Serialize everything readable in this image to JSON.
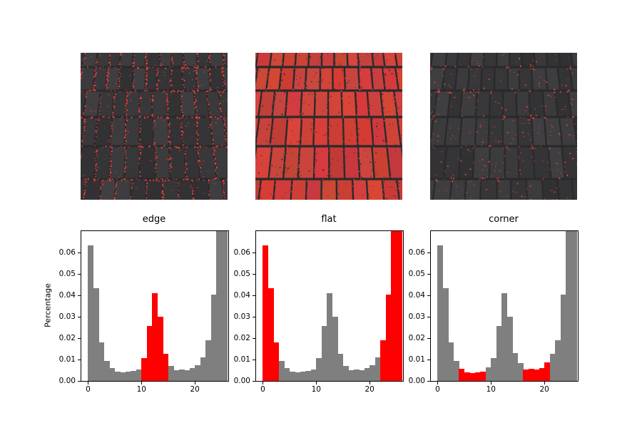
{
  "figure": {
    "background": "#ffffff",
    "description": "Three pavement photographs with red pixel overlays above three histograms"
  },
  "colors": {
    "bar_gray": "#7f7f7f",
    "bar_red": "#ff0000",
    "spine": "#000000",
    "text": "#000000",
    "brick": "#3c3c3c",
    "mortar": "#2a2a2c",
    "red_dot": "#e8403a",
    "flat_red": "#c7423c"
  },
  "images": [
    {
      "alt": "paving bricks with edge pixels highlighted in red",
      "overlay": "edge"
    },
    {
      "alt": "paving bricks with flat regions highlighted in red",
      "overlay": "flat"
    },
    {
      "alt": "paving bricks with corner pixels highlighted in red",
      "overlay": "corner"
    }
  ],
  "chart_data": {
    "type": "bar",
    "subtype": "histogram",
    "ylabel": "Percentage",
    "bin_start": 0,
    "bin_width": 1,
    "xlim": [
      -1.25,
      26.25
    ],
    "ylim": [
      0,
      0.07
    ],
    "xticks": [
      0,
      10,
      20
    ],
    "xtick_labels": [
      "0",
      "10",
      "20"
    ],
    "yticks": [
      0,
      0.01,
      0.02,
      0.03,
      0.04,
      0.05,
      0.06
    ],
    "ytick_labels": [
      "0.00",
      "0.01",
      "0.02",
      "0.03",
      "0.04",
      "0.05",
      "0.06"
    ],
    "grid": false,
    "legend": "none",
    "note": "26 bins of width 1 from 0 to 26; the last two bins exceed the y-axis range and are clipped at the top of each plot",
    "panels": [
      {
        "title": "edge",
        "red_bins": [
          [
            10,
            15
          ]
        ],
        "values": [
          0.0635,
          0.0435,
          0.0181,
          0.0095,
          0.006,
          0.0044,
          0.004,
          0.0043,
          0.0047,
          0.0055,
          0.0107,
          0.0256,
          0.041,
          0.03,
          0.0126,
          0.0069,
          0.0051,
          0.0054,
          0.0051,
          0.0059,
          0.0074,
          0.011,
          0.019,
          0.0403,
          0.075,
          0.075
        ]
      },
      {
        "title": "flat",
        "red_bins": [
          [
            0,
            3
          ],
          [
            22,
            26
          ]
        ],
        "values": [
          0.0635,
          0.0435,
          0.0181,
          0.0095,
          0.006,
          0.0044,
          0.004,
          0.0043,
          0.0047,
          0.0055,
          0.0107,
          0.0256,
          0.041,
          0.03,
          0.0126,
          0.0069,
          0.0051,
          0.0054,
          0.0051,
          0.0059,
          0.0074,
          0.011,
          0.019,
          0.0403,
          0.075,
          0.075
        ]
      },
      {
        "title": "corner",
        "red_bins": [
          [
            4,
            9
          ],
          [
            16,
            21
          ]
        ],
        "values": [
          0.0635,
          0.0435,
          0.0181,
          0.0095,
          0.0058,
          0.004,
          0.0038,
          0.0041,
          0.0044,
          0.0065,
          0.0107,
          0.0256,
          0.041,
          0.03,
          0.013,
          0.0083,
          0.0053,
          0.0057,
          0.0053,
          0.0061,
          0.0086,
          0.0126,
          0.019,
          0.0403,
          0.075,
          0.075
        ]
      }
    ]
  }
}
